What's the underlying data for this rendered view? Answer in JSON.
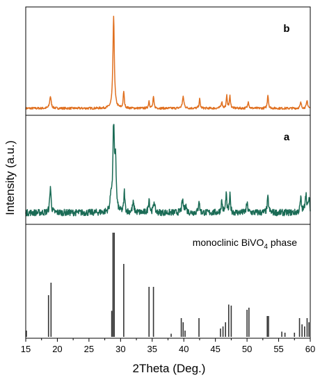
{
  "chart_data": {
    "type": "line",
    "xlabel": "2Theta (Deg.)",
    "ylabel": "Intensity (a.u.)",
    "xlim": [
      15,
      60
    ],
    "xticks": [
      15,
      20,
      25,
      30,
      35,
      40,
      45,
      50,
      55,
      60
    ],
    "yticks": [],
    "grid": false,
    "legend": "none",
    "colors": {
      "b": "#e07020",
      "a": "#1a6b55",
      "reference": "#333333",
      "axis": "#000000"
    },
    "panels": [
      {
        "label": "b",
        "series": [
          {
            "color": "#e07020",
            "baseline": 3,
            "ylim": [
              0,
              100
            ],
            "noise": 1.2,
            "peaks": [
              [
                18.9,
                13,
                0.14
              ],
              [
                28.9,
                100,
                0.13
              ],
              [
                30.5,
                18,
                0.1
              ],
              [
                34.5,
                8,
                0.1
              ],
              [
                35.2,
                12,
                0.1
              ],
              [
                39.9,
                12,
                0.15
              ],
              [
                42.5,
                10,
                0.1
              ],
              [
                46.0,
                7,
                0.12
              ],
              [
                46.8,
                13,
                0.1
              ],
              [
                47.3,
                13,
                0.1
              ],
              [
                50.2,
                8,
                0.1
              ],
              [
                53.3,
                15,
                0.1
              ],
              [
                58.5,
                6,
                0.12
              ],
              [
                59.5,
                8,
                0.12
              ]
            ]
          }
        ]
      },
      {
        "label": "a",
        "series": [
          {
            "color": "#1a6b55",
            "baseline": 8,
            "ylim": [
              0,
              100
            ],
            "noise": 3.5,
            "peaks": [
              [
                18.9,
                28,
                0.12
              ],
              [
                28.5,
                18,
                0.15
              ],
              [
                28.9,
                100,
                0.12
              ],
              [
                29.2,
                55,
                0.12
              ],
              [
                30.6,
                22,
                0.1
              ],
              [
                32.0,
                10,
                0.15
              ],
              [
                34.5,
                15,
                0.12
              ],
              [
                35.3,
                12,
                0.12
              ],
              [
                39.8,
                12,
                0.15
              ],
              [
                40.3,
                8,
                0.12
              ],
              [
                42.4,
                14,
                0.1
              ],
              [
                46.0,
                12,
                0.12
              ],
              [
                46.7,
                20,
                0.1
              ],
              [
                47.3,
                18,
                0.1
              ],
              [
                50.0,
                10,
                0.12
              ],
              [
                53.3,
                16,
                0.12
              ],
              [
                58.5,
                15,
                0.12
              ],
              [
                59.3,
                20,
                0.15
              ],
              [
                59.8,
                14,
                0.12
              ]
            ]
          }
        ]
      },
      {
        "label": "monoclinic BiVO4 phase",
        "label_text": "monoclinic BiVO",
        "label_sub": "4",
        "label_tail": " phase",
        "type": "bar",
        "ylim": [
          0,
          100
        ],
        "series": [
          {
            "color": "#333333",
            "x": [
              15.1,
              18.6,
              19.0,
              28.6,
              28.8,
              29.0,
              30.5,
              34.5,
              35.2,
              38.0,
              39.6,
              39.9,
              40.2,
              42.4,
              45.8,
              46.2,
              46.6,
              47.1,
              47.5,
              50.0,
              50.3,
              53.2,
              53.4,
              55.5,
              56.0,
              57.5,
              58.3,
              58.7,
              59.1,
              59.5,
              59.8
            ],
            "values": [
              6,
              40,
              52,
              25,
              100,
              100,
              70,
              48,
              48,
              3,
              18,
              14,
              6,
              18,
              8,
              10,
              14,
              31,
              30,
              26,
              28,
              20,
              20,
              5,
              4,
              4,
              18,
              12,
              10,
              18,
              14
            ]
          }
        ]
      }
    ]
  }
}
